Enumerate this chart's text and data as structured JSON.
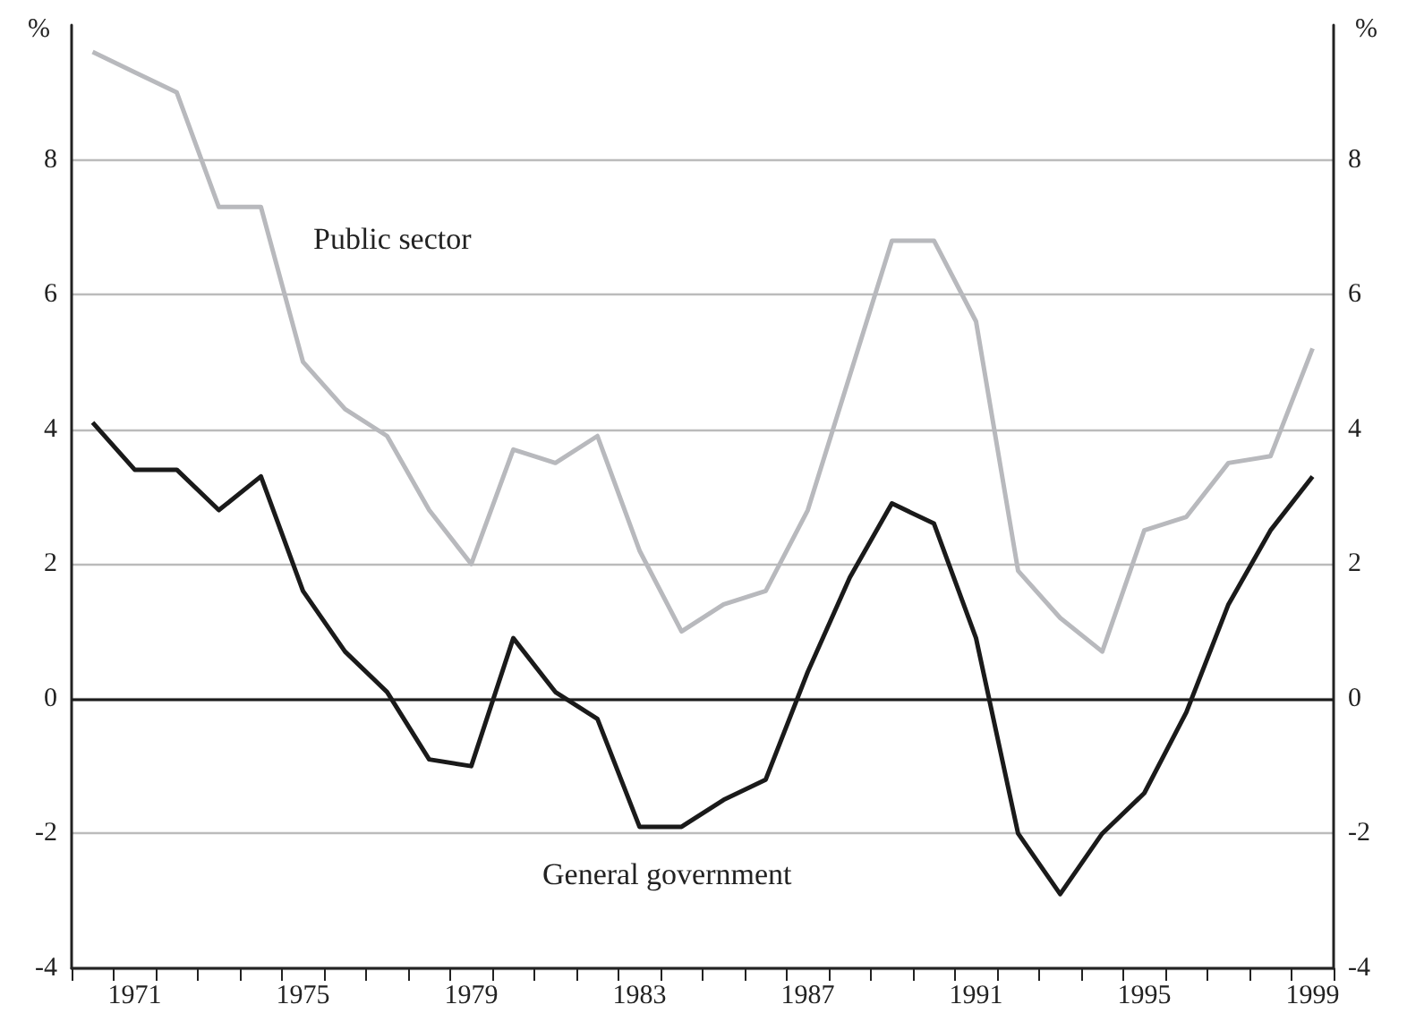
{
  "chart_data": {
    "type": "line",
    "ylabel": "%",
    "y2label": "%",
    "categories": [
      null,
      "1971",
      null,
      null,
      null,
      "1975",
      null,
      null,
      null,
      "1979",
      null,
      null,
      null,
      "1983",
      null,
      null,
      null,
      "1987",
      null,
      null,
      null,
      "1991",
      null,
      null,
      null,
      "1995",
      null,
      null,
      null,
      "1999"
    ],
    "series": [
      {
        "color": "#b8b9bd",
        "values": [
          9.6,
          9.3,
          9.0,
          7.3,
          7.3,
          5.0,
          4.3,
          3.9,
          2.8,
          2.0,
          3.7,
          3.5,
          3.9,
          2.2,
          1.0,
          1.4,
          1.6,
          2.8,
          4.8,
          6.8,
          6.8,
          5.6,
          1.9,
          1.2,
          0.7,
          2.5,
          2.7,
          3.5,
          3.6,
          5.2
        ]
      },
      {
        "color": "#1a1a1a",
        "values": [
          4.1,
          3.4,
          3.4,
          2.8,
          3.3,
          1.6,
          0.7,
          0.1,
          -0.9,
          -1.0,
          0.9,
          0.1,
          -0.3,
          -1.9,
          -1.9,
          -1.5,
          -1.2,
          0.4,
          1.8,
          2.9,
          2.6,
          0.9,
          -2.0,
          -2.9,
          -2.0,
          -1.4,
          -0.2,
          1.4,
          2.5,
          3.3
        ]
      }
    ],
    "ylim": [
      -4,
      10
    ],
    "yticks": [
      -4,
      -2,
      0,
      2,
      4,
      6,
      8
    ],
    "y2lim": [
      -4,
      10
    ],
    "y2ticks": [
      -4,
      -2,
      0,
      2,
      4,
      6,
      8
    ],
    "grid": "y",
    "marker": "none",
    "line_style": "solid",
    "ref_lines": [
      {
        "axis": "y",
        "value": 0,
        "color": "#1a1a1a"
      }
    ],
    "annotations": [
      "Public sector",
      "General government"
    ]
  }
}
